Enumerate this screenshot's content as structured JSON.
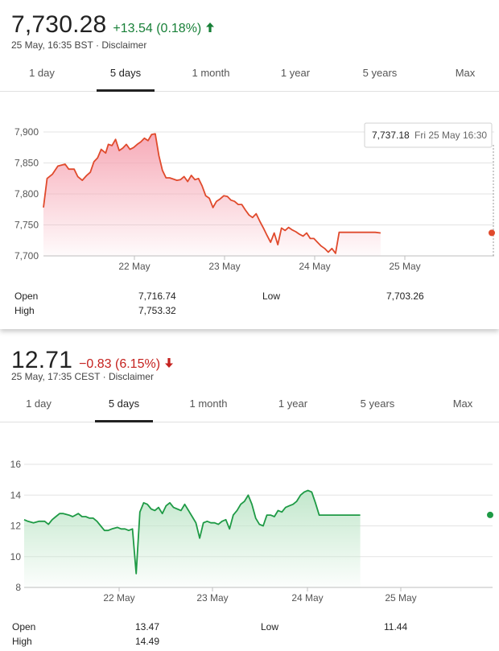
{
  "quotes": [
    {
      "price": "7,730.28",
      "change": "+13.54 (0.18%)",
      "direction": "up",
      "timestamp": "25 May, 16:35 BST",
      "separator": "·",
      "disclaimer": "Disclaimer",
      "tabs": [
        "1 day",
        "5 days",
        "1 month",
        "1 year",
        "5 years",
        "Max"
      ],
      "active_tab": "5 days",
      "stats": {
        "open_label": "Open",
        "open_value": "7,716.74",
        "high_label": "High",
        "high_value": "7,753.32",
        "low_label": "Low",
        "low_value": "7,703.26"
      },
      "colors": {
        "line": "#e04a2c",
        "fill": "#f6a6b4",
        "change": "#188038"
      },
      "tooltip": {
        "value": "7,737.18",
        "time": "Fri 25 May 16:30"
      }
    },
    {
      "price": "12.71",
      "change": "−0.83 (6.15%)",
      "direction": "down",
      "timestamp": "25 May, 17:35 CEST",
      "separator": "·",
      "disclaimer": "Disclaimer",
      "tabs": [
        "1 day",
        "5 days",
        "1 month",
        "1 year",
        "5 years",
        "Max"
      ],
      "active_tab": "5 days",
      "stats": {
        "open_label": "Open",
        "open_value": "13.47",
        "high_label": "High",
        "high_value": "14.49",
        "low_label": "Low",
        "low_value": "11.44"
      },
      "colors": {
        "line": "#1e9a45",
        "fill": "#bfe6c9",
        "change": "#c5221f"
      }
    }
  ],
  "chart_data": [
    {
      "type": "area",
      "title": "",
      "xlabel": "",
      "ylabel": "",
      "x_ticks": [
        "22 May",
        "23 May",
        "24 May",
        "25 May"
      ],
      "y_ticks": [
        7700,
        7750,
        7800,
        7850,
        7900
      ],
      "ylim": [
        7700,
        7900
      ],
      "grid": true,
      "series": [
        {
          "x": [
            0.0,
            0.04,
            0.1,
            0.16,
            0.24,
            0.28,
            0.34,
            0.38,
            0.43,
            0.48,
            0.52,
            0.56,
            0.6,
            0.64,
            0.69,
            0.72,
            0.76,
            0.8,
            0.84,
            0.88,
            0.92,
            0.96,
            1.0,
            1.04,
            1.08,
            1.12,
            1.16,
            1.2,
            1.24,
            1.28,
            1.32,
            1.36,
            1.4,
            1.44,
            1.48,
            1.52,
            1.56,
            1.6,
            1.64,
            1.68,
            1.72,
            1.76,
            1.8,
            1.84,
            1.88,
            1.92,
            1.96,
            2.0,
            2.04,
            2.08,
            2.12,
            2.16,
            2.2,
            2.24,
            2.28,
            2.32,
            2.36,
            2.4,
            2.44,
            2.48,
            2.52,
            2.56,
            2.6,
            2.64,
            2.68,
            2.72,
            2.76,
            2.8,
            2.84,
            2.88,
            2.92,
            2.96,
            3.0,
            3.04,
            3.08,
            3.12,
            3.16,
            3.2,
            3.24,
            3.28,
            3.32,
            3.36,
            3.4,
            3.44,
            3.48,
            3.52,
            3.56,
            3.6,
            3.64,
            3.68,
            3.74
          ],
          "values": [
            7778,
            7825,
            7832,
            7845,
            7848,
            7840,
            7840,
            7828,
            7822,
            7830,
            7835,
            7852,
            7858,
            7872,
            7866,
            7880,
            7878,
            7888,
            7870,
            7874,
            7880,
            7872,
            7875,
            7880,
            7884,
            7890,
            7886,
            7896,
            7897,
            7862,
            7838,
            7826,
            7826,
            7824,
            7822,
            7823,
            7828,
            7820,
            7830,
            7823,
            7825,
            7813,
            7797,
            7793,
            7778,
            7788,
            7792,
            7797,
            7796,
            7790,
            7788,
            7783,
            7783,
            7774,
            7766,
            7762,
            7768,
            7756,
            7745,
            7733,
            7722,
            7737,
            7718,
            7745,
            7741,
            7746,
            7742,
            7739,
            7735,
            7732,
            7737,
            7728,
            7728,
            7722,
            7716,
            7712,
            7706,
            7712,
            7704,
            7738,
            7738,
            7738,
            7738,
            7738,
            7738,
            7738,
            7738,
            7738,
            7738,
            7738,
            7737
          ],
          "end_value": 7737.18
        }
      ]
    },
    {
      "type": "area",
      "title": "",
      "xlabel": "",
      "ylabel": "",
      "x_ticks": [
        "22 May",
        "23 May",
        "24 May",
        "25 May"
      ],
      "y_ticks": [
        8,
        10,
        12,
        14,
        16
      ],
      "ylim": [
        8,
        16
      ],
      "grid": true,
      "series": [
        {
          "x": [
            0.0,
            0.04,
            0.1,
            0.16,
            0.22,
            0.26,
            0.3,
            0.34,
            0.38,
            0.42,
            0.48,
            0.52,
            0.58,
            0.62,
            0.66,
            0.7,
            0.74,
            0.78,
            0.82,
            0.86,
            0.9,
            0.94,
            1.0,
            1.04,
            1.08,
            1.12,
            1.16,
            1.2,
            1.24,
            1.28,
            1.32,
            1.36,
            1.4,
            1.44,
            1.48,
            1.52,
            1.56,
            1.6,
            1.64,
            1.68,
            1.72,
            1.76,
            1.8,
            1.84,
            1.88,
            1.92,
            1.96,
            2.0,
            2.04,
            2.08,
            2.12,
            2.16,
            2.2,
            2.24,
            2.28,
            2.32,
            2.36,
            2.4,
            2.44,
            2.48,
            2.52,
            2.56,
            2.6,
            2.64,
            2.68,
            2.72,
            2.76,
            2.8,
            2.84,
            2.88,
            2.92,
            2.96,
            3.0,
            3.04,
            3.08,
            3.12,
            3.16,
            3.2,
            3.24,
            3.28,
            3.32,
            3.36,
            3.4,
            3.44,
            3.48,
            3.52,
            3.56,
            3.6
          ],
          "values": [
            12.4,
            12.3,
            12.2,
            12.3,
            12.3,
            12.1,
            12.4,
            12.6,
            12.8,
            12.8,
            12.7,
            12.6,
            12.8,
            12.6,
            12.6,
            12.5,
            12.5,
            12.3,
            12.0,
            11.7,
            11.7,
            11.8,
            11.9,
            11.8,
            11.8,
            11.7,
            11.8,
            8.9,
            12.9,
            13.5,
            13.4,
            13.1,
            13.0,
            13.2,
            12.8,
            13.3,
            13.5,
            13.2,
            13.1,
            13.0,
            13.4,
            13.0,
            12.6,
            12.2,
            11.2,
            12.2,
            12.3,
            12.2,
            12.2,
            12.1,
            12.3,
            12.4,
            11.8,
            12.7,
            13.0,
            13.4,
            13.6,
            14.0,
            13.4,
            12.5,
            12.1,
            12.0,
            12.7,
            12.7,
            12.6,
            13.0,
            12.9,
            13.2,
            13.3,
            13.4,
            13.6,
            14.0,
            14.2,
            14.3,
            14.2,
            13.5,
            12.7,
            12.7,
            12.7,
            12.7,
            12.7,
            12.7,
            12.7,
            12.7,
            12.7,
            12.7,
            12.7,
            12.7
          ],
          "end_value": 12.71
        }
      ]
    }
  ]
}
